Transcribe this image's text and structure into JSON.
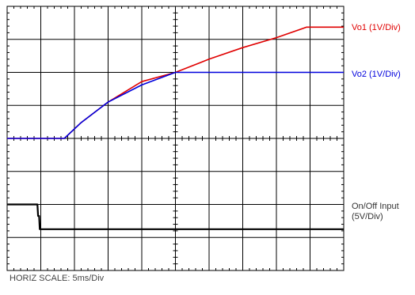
{
  "chart_data": {
    "type": "line",
    "divisions": {
      "x": 10,
      "y": 8
    },
    "grid": true,
    "xlim": [
      0,
      10
    ],
    "ylim": [
      -4,
      4
    ],
    "horiz_scale_label": "HORIZ SCALE: 5ms/Div",
    "series": [
      {
        "name": "Vo1 (1V/Div)",
        "color": "#e00000",
        "points": [
          [
            0,
            0
          ],
          [
            1.7,
            0
          ],
          [
            2.2,
            0.48
          ],
          [
            3,
            1.1
          ],
          [
            4,
            1.72
          ],
          [
            5,
            2.0
          ],
          [
            6,
            2.4
          ],
          [
            7,
            2.75
          ],
          [
            8,
            3.05
          ],
          [
            8.9,
            3.37
          ],
          [
            10,
            3.37
          ]
        ]
      },
      {
        "name": "Vo2 (1V/Div)",
        "color": "#0000dd",
        "points": [
          [
            0,
            0
          ],
          [
            1.7,
            0
          ],
          [
            2.2,
            0.48
          ],
          [
            3,
            1.1
          ],
          [
            4,
            1.62
          ],
          [
            5,
            2.0
          ],
          [
            10,
            2.0
          ]
        ]
      },
      {
        "name": "On/Off Input (5V/Div)",
        "name_lines": [
          "On/Off Input",
          "(5V/Div)"
        ],
        "color": "#000000",
        "points": [
          [
            0,
            -2.0
          ],
          [
            0.9,
            -2.0
          ],
          [
            0.92,
            -2.35
          ],
          [
            0.95,
            -2.35
          ],
          [
            0.97,
            -2.75
          ],
          [
            10,
            -2.75
          ]
        ]
      }
    ]
  }
}
